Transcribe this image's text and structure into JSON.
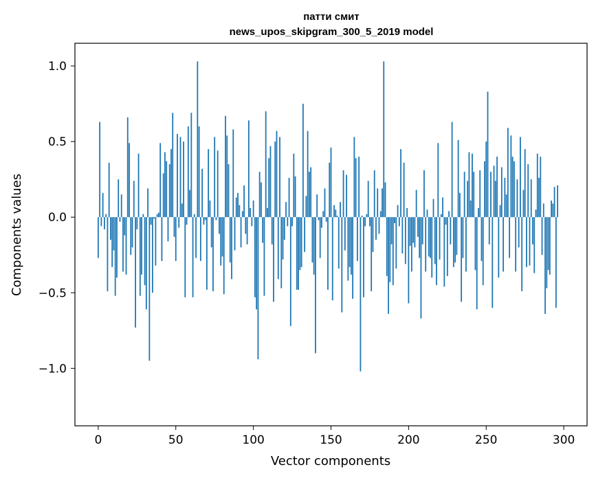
{
  "chart_data": {
    "type": "bar",
    "title_line1": "патти смит",
    "title_line2": "news_upos_skipgram_300_5_2019 model",
    "xlabel": "Vector components",
    "ylabel": "Components values",
    "xlim": [
      -15,
      315
    ],
    "ylim": [
      -1.38,
      1.15
    ],
    "x_ticks": [
      0,
      50,
      100,
      150,
      200,
      250,
      300
    ],
    "x_tick_labels": [
      "0",
      "50",
      "100",
      "150",
      "200",
      "250",
      "300"
    ],
    "y_ticks": [
      1.0,
      0.5,
      0.0,
      -0.5,
      -1.0
    ],
    "y_tick_labels": [
      "1.0",
      "0.5",
      "0.0",
      "−0.5",
      "−1.0"
    ],
    "bar_color": "#1f77b4",
    "values": [
      -0.27,
      0.63,
      -0.06,
      0.16,
      -0.08,
      0.02,
      -0.49,
      0.36,
      -0.15,
      -0.33,
      -0.22,
      -0.52,
      -0.4,
      0.25,
      -0.03,
      0.15,
      -0.36,
      -0.12,
      -0.38,
      0.66,
      0.49,
      -0.25,
      -0.2,
      0.24,
      -0.73,
      -0.08,
      0.42,
      -0.52,
      -0.38,
      0.02,
      -0.45,
      -0.61,
      0.19,
      -0.95,
      -0.05,
      -0.5,
      -0.01,
      -0.32,
      0.02,
      0.03,
      0.49,
      -0.29,
      0.29,
      0.43,
      0.37,
      -0.16,
      0.35,
      0.45,
      0.69,
      -0.13,
      -0.29,
      0.55,
      -0.07,
      0.53,
      0.09,
      0.5,
      -0.53,
      -0.05,
      0.6,
      0.18,
      0.69,
      -0.53,
      0.02,
      -0.27,
      1.03,
      0.6,
      -0.29,
      0.32,
      -0.05,
      -0.02,
      -0.48,
      0.45,
      0.11,
      -0.2,
      -0.49,
      0.53,
      -0.02,
      0.44,
      -0.11,
      -0.32,
      -0.26,
      -0.51,
      0.67,
      0.54,
      0.35,
      -0.3,
      -0.41,
      0.58,
      -0.22,
      0.13,
      0.16,
      0.08,
      -0.2,
      0.04,
      0.21,
      -0.11,
      -0.18,
      0.64,
      0.06,
      -0.06,
      0.11,
      -0.53,
      -0.61,
      -0.94,
      0.3,
      0.23,
      -0.17,
      -0.52,
      0.7,
      0.06,
      0.39,
      0.47,
      -0.18,
      -0.56,
      0.5,
      0.57,
      -0.41,
      0.53,
      -0.47,
      -0.28,
      -0.15,
      0.1,
      -0.06,
      0.26,
      -0.72,
      -0.06,
      0.42,
      0.27,
      -0.48,
      -0.48,
      -0.35,
      -0.33,
      0.75,
      -0.23,
      0.14,
      0.57,
      0.3,
      0.33,
      -0.3,
      -0.38,
      -0.9,
      0.15,
      -0.02,
      -0.27,
      -0.07,
      0.04,
      0.19,
      -0.03,
      -0.48,
      0.36,
      0.46,
      -0.55,
      0.08,
      0.05,
      0.01,
      -0.34,
      0.1,
      -0.63,
      0.31,
      -0.22,
      0.28,
      -0.42,
      -0.33,
      -0.38,
      -0.54,
      0.53,
      0.39,
      -0.29,
      0.4,
      -1.02,
      0.01,
      -0.53,
      -0.06,
      0.02,
      0.24,
      -0.06,
      -0.49,
      -0.23,
      0.31,
      -0.15,
      0.19,
      -0.11,
      0.04,
      0.19,
      1.03,
      0.23,
      -0.39,
      -0.64,
      -0.43,
      -0.18,
      -0.45,
      -0.04,
      -0.34,
      0.08,
      -0.06,
      0.45,
      -0.24,
      0.36,
      -0.31,
      0.06,
      -0.57,
      -0.19,
      -0.36,
      -0.17,
      -0.2,
      0.18,
      -0.13,
      -0.27,
      -0.67,
      -0.18,
      0.31,
      -0.36,
      0.05,
      -0.26,
      -0.27,
      -0.4,
      0.12,
      -0.31,
      -0.45,
      0.49,
      -0.28,
      0.02,
      0.13,
      -0.46,
      -0.05,
      -0.39,
      0.04,
      -0.18,
      0.63,
      -0.33,
      -0.3,
      -0.25,
      0.51,
      0.16,
      -0.56,
      -0.27,
      0.3,
      -0.36,
      0.24,
      0.43,
      0.11,
      0.42,
      0.3,
      -0.35,
      -0.61,
      0.06,
      0.31,
      -0.29,
      -0.45,
      0.37,
      0.5,
      0.83,
      -0.18,
      0.3,
      -0.6,
      0.34,
      0.24,
      0.4,
      -0.4,
      0.08,
      0.33,
      -0.36,
      0.26,
      0.15,
      0.59,
      -0.27,
      0.54,
      0.4,
      0.37,
      -0.36,
      0.25,
      -0.2,
      0.53,
      -0.49,
      0.18,
      0.45,
      -0.33,
      0.35,
      -0.32,
      0.25,
      -0.18,
      -0.37,
      0.05,
      0.42,
      0.26,
      0.4,
      -0.25,
      0.09,
      -0.64,
      -0.47,
      -0.35,
      -0.38,
      0.11,
      0.09,
      0.2,
      -0.6,
      0.21
    ]
  }
}
